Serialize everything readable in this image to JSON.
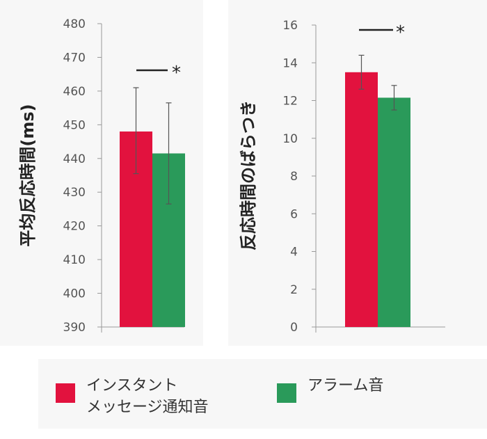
{
  "colors": {
    "instant_message": "#e2123e",
    "alarm": "#2a9a5a",
    "axis": "#999999",
    "text": "#555555"
  },
  "legend": {
    "items": [
      {
        "label_line1": "インスタント",
        "label_line2": "メッセージ通知音",
        "color": "#e2123e"
      },
      {
        "label_line1": "アラーム音",
        "label_line2": "",
        "color": "#2a9a5a"
      }
    ]
  },
  "chart_data": [
    {
      "type": "bar",
      "title": "",
      "ylabel": "平均反応時間(ms)",
      "xlabel": "",
      "ylim": [
        390,
        480
      ],
      "yticks": [
        "480",
        "470",
        "460",
        "450",
        "440",
        "430",
        "420",
        "410",
        "400",
        "390"
      ],
      "series": [
        {
          "name": "インスタント メッセージ通知音",
          "value": 448,
          "error_low": 435.5,
          "error_high": 461
        },
        {
          "name": "アラーム音",
          "value": 441.5,
          "error_low": 426.5,
          "error_high": 456.5
        }
      ],
      "significance": "*",
      "grid": false
    },
    {
      "type": "bar",
      "title": "",
      "ylabel": "反応時間のばらつき",
      "xlabel": "",
      "ylim": [
        0,
        16
      ],
      "yticks": [
        "16",
        "14",
        "12",
        "10",
        "8",
        "6",
        "4",
        "2",
        "0"
      ],
      "series": [
        {
          "name": "インスタント メッセージ通知音",
          "value": 13.5,
          "error_low": 12.6,
          "error_high": 14.4
        },
        {
          "name": "アラーム音",
          "value": 12.15,
          "error_low": 11.5,
          "error_high": 12.8
        }
      ],
      "significance": "*",
      "grid": false
    }
  ]
}
